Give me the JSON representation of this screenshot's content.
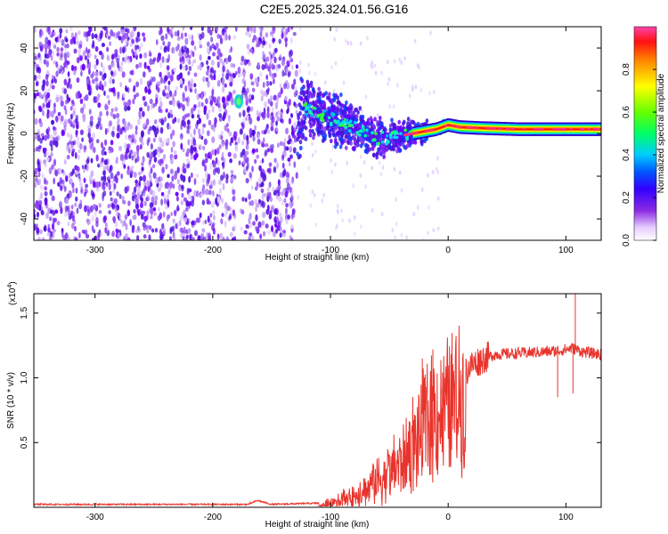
{
  "title": "C2E5.2025.324.01.56.G16",
  "chart_data": [
    {
      "type": "heatmap",
      "name": "spectrogram",
      "xlabel": "Height of straight line (km)",
      "ylabel": "Frequency (Hz)",
      "xlim": [
        -352,
        130
      ],
      "ylim": [
        -50,
        50
      ],
      "xticks": [
        -300,
        -200,
        -100,
        0,
        100
      ],
      "yticks": [
        -40,
        -20,
        0,
        20,
        40
      ],
      "colorbar": {
        "label": "Normalized spectral amplitude",
        "range": [
          0,
          1
        ],
        "ticks": [
          0.0,
          0.2,
          0.4,
          0.6,
          0.8
        ]
      },
      "noise_region_x": [
        -352,
        -128
      ],
      "gap_x": [
        -180,
        -176
      ],
      "burst": {
        "x": -178,
        "y": 15
      },
      "signal_ridge": [
        {
          "x": -125,
          "y": 12
        },
        {
          "x": -110,
          "y": 9
        },
        {
          "x": -100,
          "y": 7
        },
        {
          "x": -90,
          "y": 5
        },
        {
          "x": -80,
          "y": 3
        },
        {
          "x": -70,
          "y": 0
        },
        {
          "x": -60,
          "y": -2
        },
        {
          "x": -50,
          "y": -2
        },
        {
          "x": -40,
          "y": -1
        },
        {
          "x": -30,
          "y": 0
        },
        {
          "x": -20,
          "y": 1
        },
        {
          "x": -10,
          "y": 2
        },
        {
          "x": 0,
          "y": 4
        },
        {
          "x": 10,
          "y": 3
        },
        {
          "x": 30,
          "y": 2.5
        },
        {
          "x": 60,
          "y": 2
        },
        {
          "x": 90,
          "y": 2
        },
        {
          "x": 130,
          "y": 2
        }
      ]
    },
    {
      "type": "line",
      "name": "snr",
      "xlabel": "Height of straight line (km)",
      "ylabel": "SNR (10 * v/v)",
      "y_multiplier": "(x10",
      "y_multiplier_exp": "4",
      "xlim": [
        -352,
        130
      ],
      "ylim": [
        0,
        1.65
      ],
      "xticks": [
        -300,
        -200,
        -100,
        0,
        100
      ],
      "yticks": [
        0.5,
        1.0,
        1.5
      ],
      "ytick_labels": [
        "0.5",
        "1.0",
        "1.5"
      ],
      "color": "#e8342c",
      "envelope": [
        {
          "x": -352,
          "y": 0.02
        },
        {
          "x": -170,
          "y": 0.02
        },
        {
          "x": -162,
          "y": 0.05
        },
        {
          "x": -150,
          "y": 0.02
        },
        {
          "x": -110,
          "y": 0.03
        },
        {
          "x": -100,
          "y": 0.06
        },
        {
          "x": -90,
          "y": 0.1
        },
        {
          "x": -80,
          "y": 0.15
        },
        {
          "x": -70,
          "y": 0.22
        },
        {
          "x": -60,
          "y": 0.3
        },
        {
          "x": -50,
          "y": 0.35
        },
        {
          "x": -40,
          "y": 0.45
        },
        {
          "x": -30,
          "y": 0.6
        },
        {
          "x": -20,
          "y": 0.75
        },
        {
          "x": -10,
          "y": 0.85
        },
        {
          "x": 0,
          "y": 0.9
        },
        {
          "x": 10,
          "y": 1.0
        },
        {
          "x": 20,
          "y": 1.1
        },
        {
          "x": 30,
          "y": 1.15
        },
        {
          "x": 40,
          "y": 1.18
        },
        {
          "x": 60,
          "y": 1.19
        },
        {
          "x": 80,
          "y": 1.2
        },
        {
          "x": 95,
          "y": 1.21
        },
        {
          "x": 105,
          "y": 1.23
        },
        {
          "x": 115,
          "y": 1.2
        },
        {
          "x": 130,
          "y": 1.18
        }
      ],
      "spikes": [
        {
          "x": -22,
          "y": 1.15
        },
        {
          "x": -13,
          "y": 1.22
        },
        {
          "x": 108,
          "y": 1.65
        },
        {
          "x": 106,
          "y": 0.88
        },
        {
          "x": 93,
          "y": 0.85
        },
        {
          "x": 12,
          "y": 0.4
        },
        {
          "x": 3,
          "y": 0.65
        },
        {
          "x": -6,
          "y": 0.92
        },
        {
          "x": -3,
          "y": 1.0
        }
      ]
    }
  ]
}
